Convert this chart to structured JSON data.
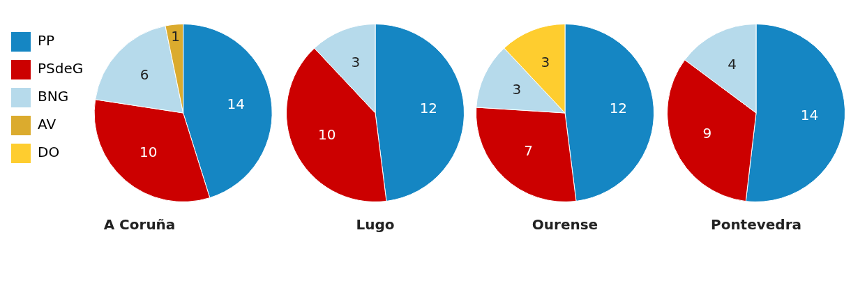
{
  "chart_data": [
    {
      "type": "pie",
      "title": "A Coruña",
      "legend": "left",
      "data_labels": true,
      "categories": [
        "PP",
        "PSdeG",
        "BNG",
        "AV",
        "DO"
      ],
      "values": [
        14,
        10,
        6,
        1,
        0
      ],
      "colors": [
        "#1586c3",
        "#cc0000",
        "#b6daeb",
        "#dbab2e",
        "#fecd2f"
      ]
    },
    {
      "type": "pie",
      "title": "Lugo",
      "data_labels": true,
      "categories": [
        null,
        null,
        null
      ],
      "values": [
        12,
        10,
        3
      ],
      "colors": [
        "#1586c3",
        "#cc0000",
        "#b6daeb"
      ]
    },
    {
      "type": "pie",
      "title": "Ourense",
      "data_labels": true,
      "categories": [
        null,
        null,
        null,
        null
      ],
      "values": [
        12,
        7,
        3,
        3
      ],
      "colors": [
        "#1586c3",
        "#cc0000",
        "#b6daeb",
        "#fecd2f"
      ]
    },
    {
      "type": "pie",
      "title": "Pontevedra",
      "data_labels": true,
      "categories": [
        null,
        null,
        null
      ],
      "values": [
        14,
        9,
        4
      ],
      "colors": [
        "#1586c3",
        "#cc0000",
        "#b6daeb"
      ]
    }
  ]
}
